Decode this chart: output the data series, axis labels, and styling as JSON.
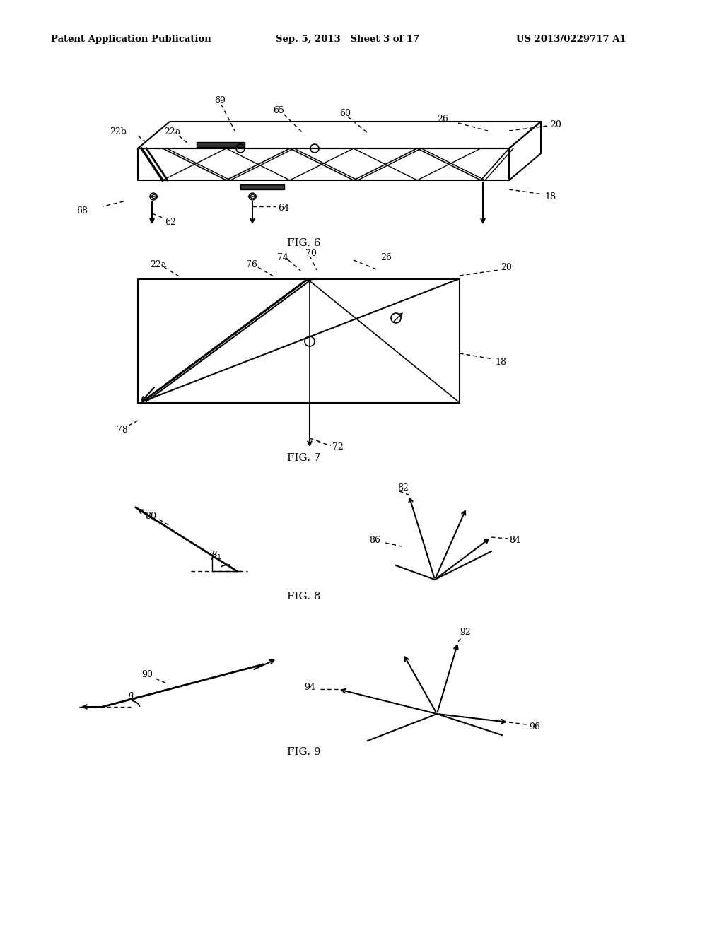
{
  "bg_color": "#ffffff",
  "header_left": "Patent Application Publication",
  "header_mid": "Sep. 5, 2013   Sheet 3 of 17",
  "header_right": "US 2013/0229717 A1",
  "fig6_label": "FIG. 6",
  "fig7_label": "FIG. 7",
  "fig8_label": "FIG. 8",
  "fig9_label": "FIG. 9"
}
